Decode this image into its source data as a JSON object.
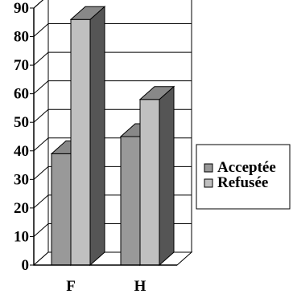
{
  "chart_data": {
    "type": "bar",
    "categories": [
      "F",
      "H"
    ],
    "series": [
      {
        "name": "Acceptée",
        "values": [
          39,
          45
        ],
        "color": "#999999"
      },
      {
        "name": "Refusée",
        "values": [
          86,
          58
        ],
        "color": "#c0c0c0"
      }
    ],
    "ylim": [
      0,
      90
    ],
    "yticks": [
      "0",
      "10",
      "20",
      "30",
      "40",
      "50",
      "60",
      "70",
      "80",
      "90"
    ],
    "grid": true,
    "legend_position": "right",
    "title": "",
    "xlabel": "",
    "ylabel": ""
  }
}
